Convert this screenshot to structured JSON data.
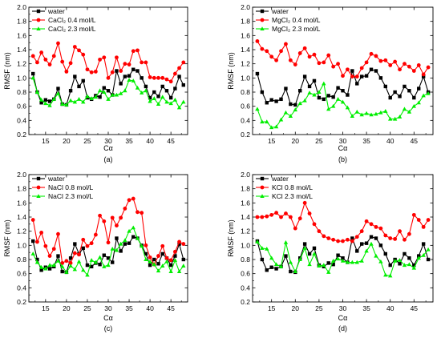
{
  "chart_data": [
    {
      "type": "line",
      "panel_label": "(a)",
      "xlabel": "Cα",
      "ylabel": "RMSF (nm)",
      "xlim": [
        11,
        49
      ],
      "ylim": [
        0.2,
        2.0
      ],
      "xticks": [
        15,
        20,
        25,
        30,
        35,
        40,
        45
      ],
      "yticks": [
        0.2,
        0.4,
        0.6,
        0.8,
        1.0,
        1.2,
        1.4,
        1.6,
        1.8,
        2.0
      ],
      "legend_position": "top-left",
      "x": [
        12,
        13,
        14,
        15,
        16,
        17,
        18,
        19,
        20,
        21,
        22,
        23,
        24,
        25,
        26,
        27,
        28,
        29,
        30,
        31,
        32,
        33,
        34,
        35,
        36,
        37,
        38,
        39,
        40,
        41,
        42,
        43,
        44,
        45,
        46,
        47,
        48
      ],
      "series": [
        {
          "name": "water",
          "color": "#000000",
          "marker": "square",
          "values": [
            1.06,
            0.8,
            0.65,
            0.69,
            0.67,
            0.7,
            0.85,
            0.63,
            0.62,
            0.82,
            1.02,
            0.88,
            0.96,
            0.72,
            0.7,
            0.75,
            0.73,
            0.86,
            0.82,
            0.76,
            1.1,
            0.92,
            1.02,
            1.03,
            1.12,
            1.1,
            1.0,
            0.88,
            0.72,
            0.8,
            0.74,
            0.88,
            0.82,
            0.72,
            0.85,
            1.02,
            0.9
          ]
        },
        {
          "name": "CaCl₂ 0.4 mol/L",
          "color": "#ff0000",
          "marker": "circle",
          "values": [
            1.31,
            1.22,
            1.36,
            1.26,
            1.19,
            1.31,
            1.49,
            1.23,
            1.09,
            1.21,
            1.44,
            1.39,
            1.33,
            1.12,
            1.08,
            1.09,
            1.26,
            1.29,
            1.0,
            1.08,
            1.29,
            1.1,
            1.2,
            1.19,
            1.38,
            1.39,
            1.22,
            1.22,
            1.01,
            1.0,
            1.0,
            1.0,
            0.98,
            0.95,
            1.06,
            1.14,
            1.22
          ]
        },
        {
          "name": "CaCl₂ 2.3 mol/L",
          "color": "#00ee00",
          "marker": "triangle",
          "values": [
            1.0,
            0.8,
            0.69,
            0.64,
            0.61,
            0.7,
            0.78,
            0.63,
            0.62,
            0.68,
            0.66,
            0.7,
            0.66,
            0.74,
            0.71,
            0.73,
            0.82,
            0.8,
            0.7,
            0.76,
            0.76,
            0.78,
            0.82,
            0.97,
            0.96,
            0.86,
            0.79,
            0.82,
            0.67,
            0.71,
            0.63,
            0.73,
            0.66,
            0.64,
            0.69,
            0.58,
            0.66
          ]
        }
      ]
    },
    {
      "type": "line",
      "panel_label": "(b)",
      "xlabel": "Cα",
      "ylabel": "RMSF (nm)",
      "xlim": [
        11,
        49
      ],
      "ylim": [
        0.2,
        2.0
      ],
      "xticks": [
        15,
        20,
        25,
        30,
        35,
        40,
        45
      ],
      "yticks": [
        0.2,
        0.4,
        0.6,
        0.8,
        1.0,
        1.2,
        1.4,
        1.6,
        1.8,
        2.0
      ],
      "legend_position": "top-left",
      "x": [
        12,
        13,
        14,
        15,
        16,
        17,
        18,
        19,
        20,
        21,
        22,
        23,
        24,
        25,
        26,
        27,
        28,
        29,
        30,
        31,
        32,
        33,
        34,
        35,
        36,
        37,
        38,
        39,
        40,
        41,
        42,
        43,
        44,
        45,
        46,
        47,
        48
      ],
      "series": [
        {
          "name": "water",
          "color": "#000000",
          "marker": "square",
          "values": [
            1.06,
            0.8,
            0.65,
            0.69,
            0.67,
            0.7,
            0.85,
            0.63,
            0.62,
            0.82,
            1.02,
            0.88,
            0.96,
            0.72,
            0.7,
            0.75,
            0.73,
            0.86,
            0.82,
            0.76,
            1.1,
            0.92,
            1.02,
            1.03,
            1.12,
            1.1,
            1.0,
            0.88,
            0.72,
            0.8,
            0.74,
            0.88,
            0.82,
            0.72,
            0.85,
            1.02,
            0.8
          ]
        },
        {
          "name": "MgCl₂ 0.4 mol/L",
          "color": "#ff0000",
          "marker": "circle",
          "values": [
            1.52,
            1.41,
            1.38,
            1.3,
            1.25,
            1.38,
            1.48,
            1.25,
            1.19,
            1.35,
            1.42,
            1.3,
            1.33,
            1.21,
            1.22,
            1.32,
            1.16,
            1.2,
            1.03,
            1.12,
            1.02,
            1.02,
            1.14,
            1.22,
            1.34,
            1.31,
            1.24,
            1.25,
            1.18,
            1.23,
            1.12,
            1.2,
            1.16,
            1.1,
            1.18,
            1.05,
            1.15
          ]
        },
        {
          "name": "MgCl₂ 2.3 mol/L",
          "color": "#00ee00",
          "marker": "triangle",
          "values": [
            0.56,
            0.38,
            0.38,
            0.3,
            0.31,
            0.41,
            0.51,
            0.46,
            0.55,
            0.64,
            0.68,
            0.79,
            0.76,
            0.8,
            0.92,
            0.56,
            0.6,
            0.7,
            0.66,
            0.58,
            0.46,
            0.52,
            0.48,
            0.5,
            0.48,
            0.49,
            0.51,
            0.53,
            0.42,
            0.42,
            0.45,
            0.56,
            0.52,
            0.6,
            0.65,
            0.75,
            0.78
          ]
        }
      ]
    },
    {
      "type": "line",
      "panel_label": "(c)",
      "xlabel": "Cα",
      "ylabel": "RMSF (nm)",
      "xlim": [
        11,
        49
      ],
      "ylim": [
        0.2,
        2.0
      ],
      "xticks": [
        15,
        20,
        25,
        30,
        35,
        40,
        45
      ],
      "yticks": [
        0.2,
        0.4,
        0.6,
        0.8,
        1.0,
        1.2,
        1.4,
        1.6,
        1.8,
        2.0
      ],
      "legend_position": "top-left",
      "x": [
        12,
        13,
        14,
        15,
        16,
        17,
        18,
        19,
        20,
        21,
        22,
        23,
        24,
        25,
        26,
        27,
        28,
        29,
        30,
        31,
        32,
        33,
        34,
        35,
        36,
        37,
        38,
        39,
        40,
        41,
        42,
        43,
        44,
        45,
        46,
        47,
        48
      ],
      "series": [
        {
          "name": "water",
          "color": "#000000",
          "marker": "square",
          "values": [
            1.06,
            0.8,
            0.65,
            0.69,
            0.67,
            0.7,
            0.85,
            0.63,
            0.62,
            0.82,
            1.02,
            0.88,
            0.96,
            0.72,
            0.7,
            0.75,
            0.73,
            0.86,
            0.82,
            0.76,
            1.1,
            0.92,
            1.02,
            1.03,
            1.12,
            1.1,
            1.0,
            0.88,
            0.72,
            0.8,
            0.74,
            0.88,
            0.82,
            0.72,
            0.85,
            1.02,
            0.8
          ]
        },
        {
          "name": "NaCl 0.8 mol/L",
          "color": "#ff0000",
          "marker": "circle",
          "values": [
            1.36,
            1.05,
            1.18,
            0.99,
            0.85,
            0.95,
            1.16,
            0.75,
            0.78,
            0.75,
            0.89,
            0.87,
            1.08,
            0.99,
            1.03,
            1.15,
            1.42,
            1.34,
            1.04,
            1.39,
            1.28,
            1.39,
            1.52,
            1.64,
            1.66,
            1.47,
            1.46,
            1.0,
            0.83,
            0.73,
            0.85,
            0.99,
            0.82,
            0.79,
            0.91,
            1.05,
            1.02
          ]
        },
        {
          "name": "NaCl 2.3 mol/L",
          "color": "#00ee00",
          "marker": "triangle",
          "values": [
            0.88,
            0.76,
            0.69,
            0.67,
            0.72,
            0.72,
            0.78,
            0.7,
            0.62,
            0.71,
            0.66,
            0.77,
            0.65,
            0.58,
            0.79,
            0.76,
            0.83,
            0.7,
            0.72,
            0.95,
            0.93,
            1.02,
            1.07,
            1.2,
            1.25,
            1.1,
            0.99,
            0.8,
            0.77,
            0.73,
            0.64,
            0.71,
            0.77,
            0.63,
            0.79,
            0.63,
            0.71
          ]
        }
      ]
    },
    {
      "type": "line",
      "panel_label": "(d)",
      "xlabel": "Cα",
      "ylabel": "RMSF (nm)",
      "xlim": [
        11,
        49
      ],
      "ylim": [
        0.2,
        2.0
      ],
      "xticks": [
        15,
        20,
        25,
        30,
        35,
        40,
        45
      ],
      "yticks": [
        0.2,
        0.4,
        0.6,
        0.8,
        1.0,
        1.2,
        1.4,
        1.6,
        1.8,
        2.0
      ],
      "legend_position": "top-left",
      "x": [
        12,
        13,
        14,
        15,
        16,
        17,
        18,
        19,
        20,
        21,
        22,
        23,
        24,
        25,
        26,
        27,
        28,
        29,
        30,
        31,
        32,
        33,
        34,
        35,
        36,
        37,
        38,
        39,
        40,
        41,
        42,
        43,
        44,
        45,
        46,
        47,
        48
      ],
      "series": [
        {
          "name": "water",
          "color": "#000000",
          "marker": "square",
          "values": [
            1.06,
            0.8,
            0.65,
            0.69,
            0.67,
            0.7,
            0.85,
            0.63,
            0.62,
            0.82,
            1.02,
            0.88,
            0.96,
            0.72,
            0.7,
            0.75,
            0.73,
            0.86,
            0.82,
            0.76,
            1.1,
            0.92,
            1.02,
            1.03,
            1.12,
            1.1,
            1.0,
            0.88,
            0.72,
            0.8,
            0.74,
            0.88,
            0.82,
            0.72,
            0.85,
            1.02,
            0.8
          ]
        },
        {
          "name": "KCl 0.8 mol/L",
          "color": "#ff0000",
          "marker": "circle",
          "values": [
            1.4,
            1.4,
            1.41,
            1.43,
            1.46,
            1.4,
            1.45,
            1.4,
            1.24,
            1.38,
            1.6,
            1.45,
            1.3,
            1.2,
            1.13,
            1.1,
            1.08,
            1.06,
            1.06,
            1.08,
            1.06,
            1.12,
            1.2,
            1.34,
            1.3,
            1.26,
            1.24,
            1.14,
            1.1,
            1.09,
            1.2,
            1.08,
            1.16,
            1.43,
            1.36,
            1.26,
            1.36
          ]
        },
        {
          "name": "KCl 2.3 mol/L",
          "color": "#00ee00",
          "marker": "triangle",
          "values": [
            1.05,
            0.96,
            0.95,
            0.82,
            0.73,
            0.7,
            1.04,
            0.76,
            0.63,
            0.8,
            0.96,
            0.73,
            0.88,
            0.71,
            0.72,
            0.62,
            0.78,
            0.81,
            0.78,
            0.76,
            0.76,
            0.76,
            0.78,
            0.92,
            1.02,
            0.85,
            0.77,
            0.58,
            0.57,
            0.78,
            0.79,
            0.72,
            0.73,
            0.68,
            0.82,
            0.86,
            0.94
          ]
        }
      ]
    }
  ]
}
